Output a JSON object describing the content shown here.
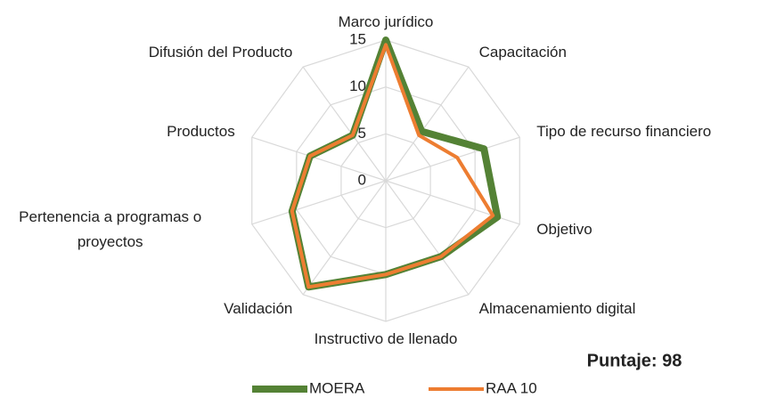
{
  "chart_data": {
    "type": "radar",
    "categories": [
      "Marco jurídico",
      "Capacitación",
      "Tipo de recurso financiero",
      "Objetivo",
      "Almacenamiento digital",
      "Instructivo de llenado",
      "Validación",
      "Pertenencia a programas o proyectos",
      "Productos",
      "Difusión del Producto"
    ],
    "series": [
      {
        "name": "MOERA",
        "color": "#548235",
        "values": [
          15,
          6.5,
          11,
          12.5,
          10,
          10,
          14,
          10.5,
          8.5,
          6
        ]
      },
      {
        "name": "RAA 10",
        "color": "#ED7D31",
        "values": [
          14.5,
          6,
          8,
          12,
          10,
          10,
          14,
          10.5,
          8.5,
          6
        ]
      }
    ],
    "ylim": [
      0,
      15
    ],
    "yticks": [
      0,
      5,
      10,
      15
    ],
    "grid": true,
    "legend": "bottom",
    "annotation": "Puntaje: 98"
  }
}
